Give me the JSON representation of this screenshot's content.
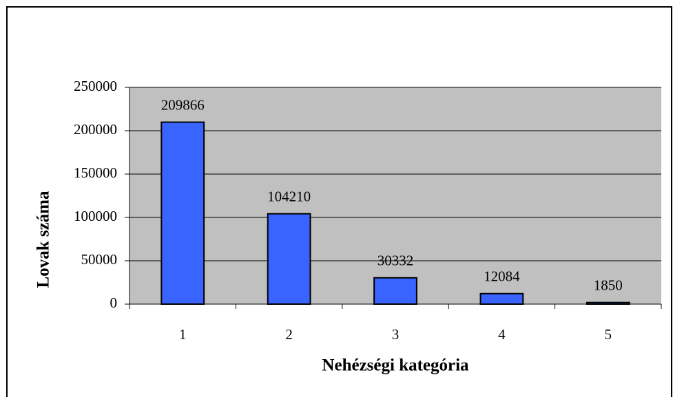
{
  "chart_data": {
    "type": "bar",
    "x_label": "Nehézségi kategória",
    "y_label": "Lovak száma",
    "categories": [
      "1",
      "2",
      "3",
      "4",
      "5"
    ],
    "values": [
      209866,
      104210,
      30332,
      12084,
      1850
    ],
    "color": "#3a64ff",
    "ylim": [
      0,
      250000
    ],
    "yticks": [
      0,
      50000,
      100000,
      150000,
      200000,
      250000
    ],
    "grid": true
  }
}
